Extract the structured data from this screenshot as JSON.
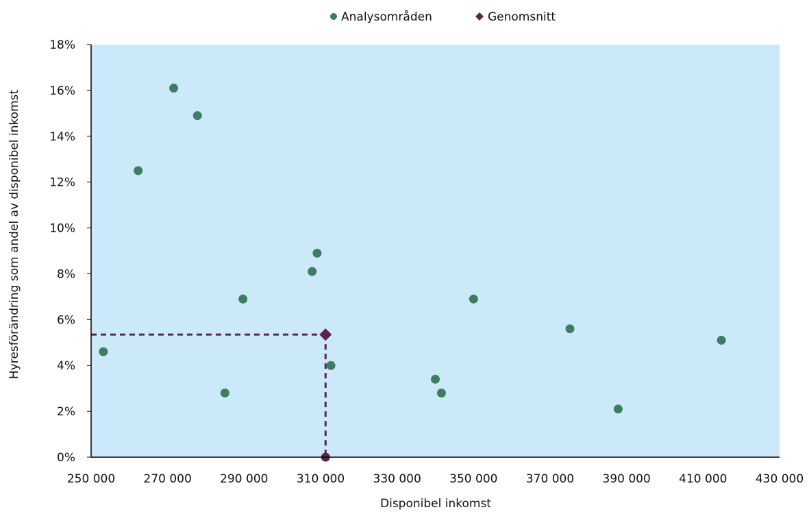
{
  "colors": {
    "plot_background": "#cce9f9",
    "axis": "#000000",
    "area_points": "#3f7d63",
    "average": "#5c2448"
  },
  "legend": [
    {
      "label": "Analysområden",
      "icon": "circle-marker-icon"
    },
    {
      "label": "Genomsnitt",
      "icon": "diamond-marker-icon"
    }
  ],
  "chart_data": {
    "type": "scatter",
    "xlabel": "Disponibel inkomst",
    "ylabel": "Hyresförändring som andel av disponibel inkomst",
    "xlim": [
      250000,
      430000
    ],
    "ylim": [
      0,
      18
    ],
    "x_ticks": [
      250000,
      270000,
      290000,
      310000,
      330000,
      350000,
      370000,
      390000,
      410000,
      430000
    ],
    "x_tick_labels": [
      "250 000",
      "270 000",
      "290 000",
      "310 000",
      "330 000",
      "350 000",
      "370 000",
      "390 000",
      "410 000",
      "430 000"
    ],
    "y_ticks": [
      0,
      2,
      4,
      6,
      8,
      10,
      12,
      14,
      16,
      18
    ],
    "y_tick_labels": [
      "0%",
      "2%",
      "4%",
      "6%",
      "8%",
      "10%",
      "12%",
      "14%",
      "16%",
      "18%"
    ],
    "grid": false,
    "legend_position": "top-center",
    "series": [
      {
        "name": "Analysområden",
        "marker": "circle",
        "points": [
          {
            "x": 253200,
            "y": 4.6
          },
          {
            "x": 262300,
            "y": 12.5
          },
          {
            "x": 271600,
            "y": 16.1
          },
          {
            "x": 277800,
            "y": 14.9
          },
          {
            "x": 285000,
            "y": 2.8
          },
          {
            "x": 289700,
            "y": 6.9
          },
          {
            "x": 307800,
            "y": 8.1
          },
          {
            "x": 309100,
            "y": 8.9
          },
          {
            "x": 312700,
            "y": 4.0
          },
          {
            "x": 340000,
            "y": 3.4
          },
          {
            "x": 341600,
            "y": 2.8
          },
          {
            "x": 350000,
            "y": 6.9
          },
          {
            "x": 375200,
            "y": 5.6
          },
          {
            "x": 387800,
            "y": 2.1
          },
          {
            "x": 414800,
            "y": 5.1
          }
        ]
      },
      {
        "name": "Genomsnitt",
        "marker": "diamond",
        "points": [
          {
            "x": 311300,
            "y": 5.35
          }
        ],
        "guide_lines": "dashed"
      }
    ]
  }
}
